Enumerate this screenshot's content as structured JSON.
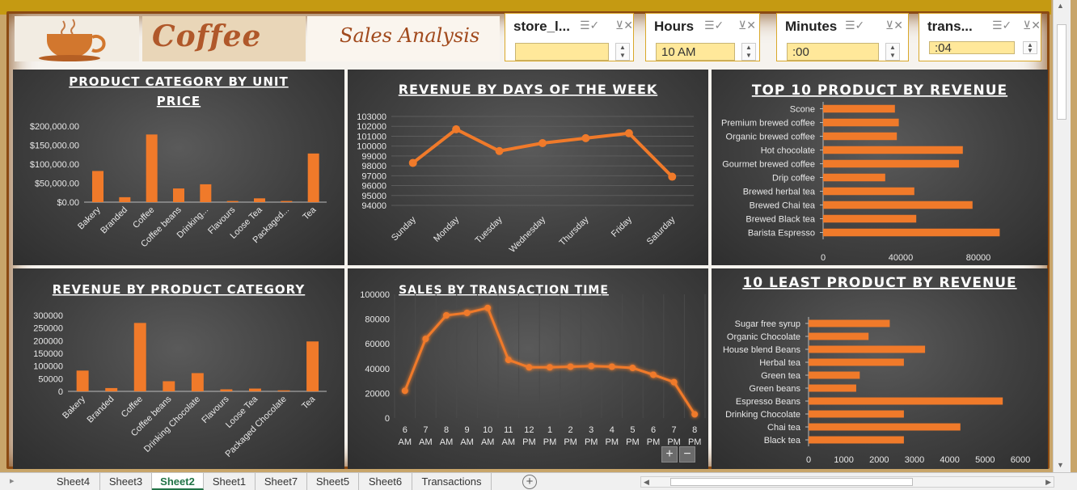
{
  "header": {
    "logo_text": "Coffee",
    "title": "Sales Analysis"
  },
  "slicers": [
    {
      "label": "store_l...",
      "value": ""
    },
    {
      "label": "Hours",
      "value": "10 AM"
    },
    {
      "label": "Minutes",
      "value": ":00"
    },
    {
      "label": "trans...",
      "value": ":04"
    }
  ],
  "icons": {
    "multi_select": "multi-select-icon",
    "clear_filter": "clear-filter-icon"
  },
  "colors": {
    "accent": "#f07a2a",
    "panel": "#444444",
    "tab_active": "#217346"
  },
  "sheet_tabs": [
    "Sheet4",
    "Sheet3",
    "Sheet2",
    "Sheet1",
    "Sheet7",
    "Sheet5",
    "Sheet6",
    "Transactions"
  ],
  "active_tab": "Sheet2",
  "zoom": {
    "plus": "+",
    "minus": "−"
  },
  "chart_data": [
    {
      "id": "unit-price",
      "type": "bar",
      "title": "PRODUCT CATEGORY BY UNIT PRICE",
      "title_lines": [
        "PRODUCT CATEGORY BY UNIT",
        "PRICE"
      ],
      "categories": [
        "Bakery",
        "Branded",
        "Coffee",
        "Coffee beans",
        "Drinking...",
        "Flavours",
        "Loose Tea",
        "Packaged...",
        "Tea"
      ],
      "values": [
        82000,
        13000,
        178000,
        36000,
        47000,
        3000,
        10000,
        3000,
        128000
      ],
      "yticks": [
        "$200,000.00",
        "$150,000.00",
        "$100,000.00",
        "$50,000.00",
        "$0.00"
      ],
      "ylim": [
        0,
        200000
      ]
    },
    {
      "id": "days",
      "type": "line",
      "title": "REVENUE BY DAYS OF THE WEEK",
      "categories": [
        "Sunday",
        "Monday",
        "Tuesday",
        "Wednesday",
        "Thursday",
        "Friday",
        "Saturday"
      ],
      "values": [
        98300,
        101700,
        99500,
        100300,
        100800,
        101300,
        96900
      ],
      "yticks": [
        "103000",
        "102000",
        "101000",
        "100000",
        "99000",
        "98000",
        "97000",
        "96000",
        "95000",
        "94000"
      ],
      "ylim": [
        94000,
        103000
      ]
    },
    {
      "id": "top10",
      "type": "bar",
      "orientation": "horizontal",
      "title": "TOP 10 PRODUCT BY REVENUE",
      "categories": [
        "Scone",
        "Premium brewed coffee",
        "Organic brewed coffee",
        "Hot chocolate",
        "Gourmet brewed coffee",
        "Drip coffee",
        "Brewed herbal tea",
        "Brewed Chai tea",
        "Brewed Black tea",
        "Barista Espresso"
      ],
      "values": [
        37000,
        39000,
        38000,
        72000,
        70000,
        32000,
        47000,
        77000,
        48000,
        91000
      ],
      "xticks": [
        "0",
        "40000",
        "80000"
      ],
      "xlim": [
        0,
        100000
      ]
    },
    {
      "id": "category-revenue",
      "type": "bar",
      "title": "REVENUE BY PRODUCT CATEGORY",
      "categories": [
        "Bakery",
        "Branded",
        "Coffee",
        "Coffee beans",
        "Drinking Chocolate",
        "Flavours",
        "Loose Tea",
        "Packaged Chocolate",
        "Tea"
      ],
      "values": [
        82000,
        13000,
        270000,
        40000,
        72000,
        8000,
        11000,
        4000,
        197000
      ],
      "yticks": [
        "300000",
        "250000",
        "200000",
        "150000",
        "100000",
        "50000",
        "0"
      ],
      "ylim": [
        0,
        300000
      ]
    },
    {
      "id": "txn-time",
      "type": "line",
      "title": "SALES BY TRANSACTION TIME",
      "categories": [
        "6 AM",
        "7 AM",
        "8 AM",
        "9 AM",
        "10 AM",
        "11 AM",
        "12 PM",
        "1 PM",
        "2 PM",
        "3 PM",
        "4 PM",
        "5 PM",
        "6 PM",
        "7 PM",
        "8 PM"
      ],
      "values": [
        22000,
        64000,
        83000,
        85000,
        89000,
        47000,
        41000,
        41000,
        41500,
        42000,
        41500,
        40500,
        35000,
        29000,
        3000
      ],
      "yticks": [
        "100000",
        "80000",
        "60000",
        "40000",
        "20000",
        "0"
      ],
      "ylim": [
        0,
        100000
      ]
    },
    {
      "id": "least10",
      "type": "bar",
      "orientation": "horizontal",
      "title": "10 LEAST PRODUCT BY REVENUE",
      "categories": [
        "Sugar free syrup",
        "Organic Chocolate",
        "House blend Beans",
        "Herbal tea",
        "Green tea",
        "Green beans",
        "Espresso Beans",
        "Drinking Chocolate",
        "Chai tea",
        "Black tea"
      ],
      "values": [
        2300,
        1700,
        3300,
        2700,
        1450,
        1350,
        5500,
        2700,
        4300,
        2700
      ],
      "xticks": [
        "0",
        "1000",
        "2000",
        "3000",
        "4000",
        "5000",
        "6000"
      ],
      "xlim": [
        0,
        6000
      ]
    }
  ]
}
